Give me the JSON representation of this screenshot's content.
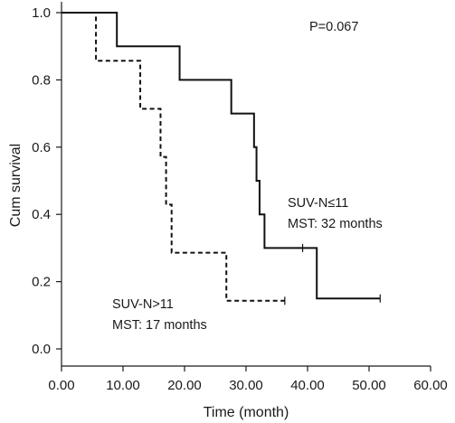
{
  "chart_data": {
    "type": "line",
    "chart_kind": "kaplan-meier step curve",
    "title": "",
    "xlabel": "Time (month)",
    "ylabel": "Cum survival",
    "xlim": [
      0,
      60
    ],
    "ylim": [
      0,
      1.0
    ],
    "xticks": [
      0,
      10,
      20,
      30,
      40,
      50,
      60
    ],
    "xtick_labels": [
      "0.00",
      "10.00",
      "20.00",
      "30.00",
      "40.00",
      "50.00",
      "60.00"
    ],
    "yticks": [
      0,
      0.2,
      0.4,
      0.6,
      0.8,
      1.0
    ],
    "ytick_labels": [
      "0.0",
      "0.2",
      "0.4",
      "0.6",
      "0.8",
      "1.0"
    ],
    "grid": false,
    "annotation_p": "P=0.067",
    "series": [
      {
        "name": "SUV-N≤11",
        "line_style": "solid",
        "color": "#111111",
        "summary": "MST: 32 months",
        "steps": [
          {
            "x": 0,
            "y": 1.0
          },
          {
            "x": 9,
            "y": 0.9
          },
          {
            "x": 19.2,
            "y": 0.8
          },
          {
            "x": 27.6,
            "y": 0.7
          },
          {
            "x": 31.3,
            "y": 0.6
          },
          {
            "x": 31.7,
            "y": 0.5
          },
          {
            "x": 32.2,
            "y": 0.4
          },
          {
            "x": 33.0,
            "y": 0.3
          },
          {
            "x": 41.5,
            "y": 0.15
          }
        ],
        "end_x": 51.8,
        "censored": [
          {
            "x": 39.2,
            "y": 0.3
          },
          {
            "x": 51.8,
            "y": 0.15
          }
        ]
      },
      {
        "name": "SUV-N>11",
        "line_style": "dashed",
        "color": "#111111",
        "summary": "MST: 17 months",
        "steps": [
          {
            "x": 0,
            "y": 1.0
          },
          {
            "x": 5.6,
            "y": 0.857
          },
          {
            "x": 12.8,
            "y": 0.714
          },
          {
            "x": 16.1,
            "y": 0.571
          },
          {
            "x": 17.0,
            "y": 0.429
          },
          {
            "x": 17.9,
            "y": 0.286
          },
          {
            "x": 26.8,
            "y": 0.143
          }
        ],
        "end_x": 36.3,
        "censored": [
          {
            "x": 36.3,
            "y": 0.143
          }
        ]
      }
    ]
  }
}
